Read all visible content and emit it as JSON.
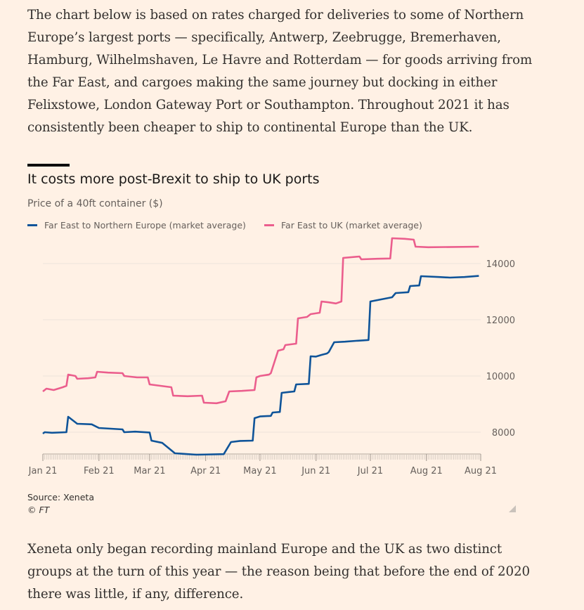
{
  "paragraphs": {
    "intro": "The chart below is based on rates charged for deliveries to some of Northern Europe’s largest ports — specifically, Antwerp, Zeebrugge, Bremerhaven, Hamburg, Wilhelmshaven, Le Havre and Rotterdam — for goods arriving from the Far East, and cargoes making the same journey but docking in either Felixstowe, London Gateway Port or Southampton. Throughout 2021 it has consistently been cheaper to ship to continental Europe than the UK.",
    "outro": "Xeneta only began recording mainland Europe and the UK as two distinct groups at the turn of this year — the reason being that before the end of 2020 there was little, if any, difference."
  },
  "footer": {
    "source": "Source: Xeneta",
    "copyright": "© FT"
  },
  "colors": {
    "background": "#FFF1E5",
    "series_eu": "#0F5499",
    "series_uk": "#EB5E8D"
  },
  "chart_data": {
    "type": "line",
    "title": "It costs more post-Brexit to ship to UK ports",
    "subtitle": "Price of a 40ft container ($)",
    "xlabel": "",
    "ylabel": "Price of a 40ft container ($)",
    "ylim": [
      7100,
      14950
    ],
    "yticks": [
      8000,
      10000,
      12000,
      14000
    ],
    "x_domain": [
      "2021-01-01",
      "2021-08-31"
    ],
    "xticks": [
      {
        "date": "2021-01-01",
        "label": "Jan 21"
      },
      {
        "date": "2021-02-01",
        "label": "Feb 21"
      },
      {
        "date": "2021-03-01",
        "label": "Mar 21"
      },
      {
        "date": "2021-04-01",
        "label": "Apr 21"
      },
      {
        "date": "2021-05-01",
        "label": "May 21"
      },
      {
        "date": "2021-06-01",
        "label": "Jun 21"
      },
      {
        "date": "2021-07-01",
        "label": "Jul 21"
      },
      {
        "date": "2021-08-01",
        "label": "Aug 21"
      },
      {
        "date": "2021-08-31",
        "label": "Aug 21"
      }
    ],
    "legend_position": "top-left",
    "series": [
      {
        "name": "Far East to Northern Europe (market average)",
        "color": "#0F5499",
        "points": [
          [
            "2021-01-01",
            7950
          ],
          [
            "2021-01-02",
            8000
          ],
          [
            "2021-01-06",
            7980
          ],
          [
            "2021-01-14",
            8000
          ],
          [
            "2021-01-15",
            8550
          ],
          [
            "2021-01-20",
            8300
          ],
          [
            "2021-01-28",
            8280
          ],
          [
            "2021-02-01",
            8150
          ],
          [
            "2021-02-14",
            8100
          ],
          [
            "2021-02-15",
            8000
          ],
          [
            "2021-02-21",
            8020
          ],
          [
            "2021-03-01",
            7990
          ],
          [
            "2021-03-02",
            7700
          ],
          [
            "2021-03-08",
            7620
          ],
          [
            "2021-03-15",
            7250
          ],
          [
            "2021-03-22",
            7220
          ],
          [
            "2021-03-27",
            7200
          ],
          [
            "2021-04-11",
            7220
          ],
          [
            "2021-04-15",
            7650
          ],
          [
            "2021-04-20",
            7690
          ],
          [
            "2021-04-27",
            7700
          ],
          [
            "2021-04-28",
            8500
          ],
          [
            "2021-05-01",
            8560
          ],
          [
            "2021-05-07",
            8580
          ],
          [
            "2021-05-08",
            8700
          ],
          [
            "2021-05-12",
            8720
          ],
          [
            "2021-05-13",
            9400
          ],
          [
            "2021-05-17",
            9430
          ],
          [
            "2021-05-20",
            9450
          ],
          [
            "2021-05-21",
            9700
          ],
          [
            "2021-05-28",
            9720
          ],
          [
            "2021-05-29",
            10700
          ],
          [
            "2021-06-01",
            10690
          ],
          [
            "2021-06-04",
            10750
          ],
          [
            "2021-06-07",
            10800
          ],
          [
            "2021-06-08",
            10850
          ],
          [
            "2021-06-11",
            11200
          ],
          [
            "2021-06-17",
            11220
          ],
          [
            "2021-06-23",
            11250
          ],
          [
            "2021-06-30",
            11280
          ],
          [
            "2021-07-01",
            12650
          ],
          [
            "2021-07-05",
            12700
          ],
          [
            "2021-07-09",
            12750
          ],
          [
            "2021-07-13",
            12800
          ],
          [
            "2021-07-15",
            12950
          ],
          [
            "2021-07-22",
            12980
          ],
          [
            "2021-07-23",
            13200
          ],
          [
            "2021-07-28",
            13220
          ],
          [
            "2021-07-29",
            13550
          ],
          [
            "2021-08-08",
            13520
          ],
          [
            "2021-08-14",
            13500
          ],
          [
            "2021-08-22",
            13520
          ],
          [
            "2021-08-30",
            13560
          ]
        ]
      },
      {
        "name": "Far East to UK (market average)",
        "color": "#EB5E8D",
        "points": [
          [
            "2021-01-01",
            9450
          ],
          [
            "2021-01-03",
            9550
          ],
          [
            "2021-01-07",
            9500
          ],
          [
            "2021-01-12",
            9600
          ],
          [
            "2021-01-14",
            9650
          ],
          [
            "2021-01-15",
            10050
          ],
          [
            "2021-01-19",
            10000
          ],
          [
            "2021-01-20",
            9900
          ],
          [
            "2021-01-26",
            9920
          ],
          [
            "2021-01-30",
            9950
          ],
          [
            "2021-01-31",
            10150
          ],
          [
            "2021-02-06",
            10120
          ],
          [
            "2021-02-14",
            10100
          ],
          [
            "2021-02-15",
            10000
          ],
          [
            "2021-02-22",
            9950
          ],
          [
            "2021-02-28",
            9950
          ],
          [
            "2021-03-01",
            9700
          ],
          [
            "2021-03-07",
            9650
          ],
          [
            "2021-03-13",
            9600
          ],
          [
            "2021-03-14",
            9300
          ],
          [
            "2021-03-22",
            9280
          ],
          [
            "2021-03-30",
            9300
          ],
          [
            "2021-03-31",
            9050
          ],
          [
            "2021-04-07",
            9030
          ],
          [
            "2021-04-12",
            9100
          ],
          [
            "2021-04-14",
            9450
          ],
          [
            "2021-04-21",
            9470
          ],
          [
            "2021-04-28",
            9500
          ],
          [
            "2021-04-29",
            9950
          ],
          [
            "2021-05-01",
            10000
          ],
          [
            "2021-05-06",
            10050
          ],
          [
            "2021-05-07",
            10100
          ],
          [
            "2021-05-11",
            10900
          ],
          [
            "2021-05-14",
            10950
          ],
          [
            "2021-05-15",
            11100
          ],
          [
            "2021-05-21",
            11150
          ],
          [
            "2021-05-22",
            12050
          ],
          [
            "2021-05-27",
            12100
          ],
          [
            "2021-05-29",
            12200
          ],
          [
            "2021-06-03",
            12250
          ],
          [
            "2021-06-04",
            12650
          ],
          [
            "2021-06-08",
            12620
          ],
          [
            "2021-06-12",
            12580
          ],
          [
            "2021-06-15",
            12650
          ],
          [
            "2021-06-16",
            14200
          ],
          [
            "2021-06-25",
            14250
          ],
          [
            "2021-06-26",
            14150
          ],
          [
            "2021-07-05",
            14170
          ],
          [
            "2021-07-12",
            14180
          ],
          [
            "2021-07-13",
            14900
          ],
          [
            "2021-07-20",
            14880
          ],
          [
            "2021-07-25",
            14850
          ],
          [
            "2021-07-26",
            14600
          ],
          [
            "2021-08-02",
            14580
          ],
          [
            "2021-08-30",
            14600
          ]
        ]
      }
    ]
  }
}
